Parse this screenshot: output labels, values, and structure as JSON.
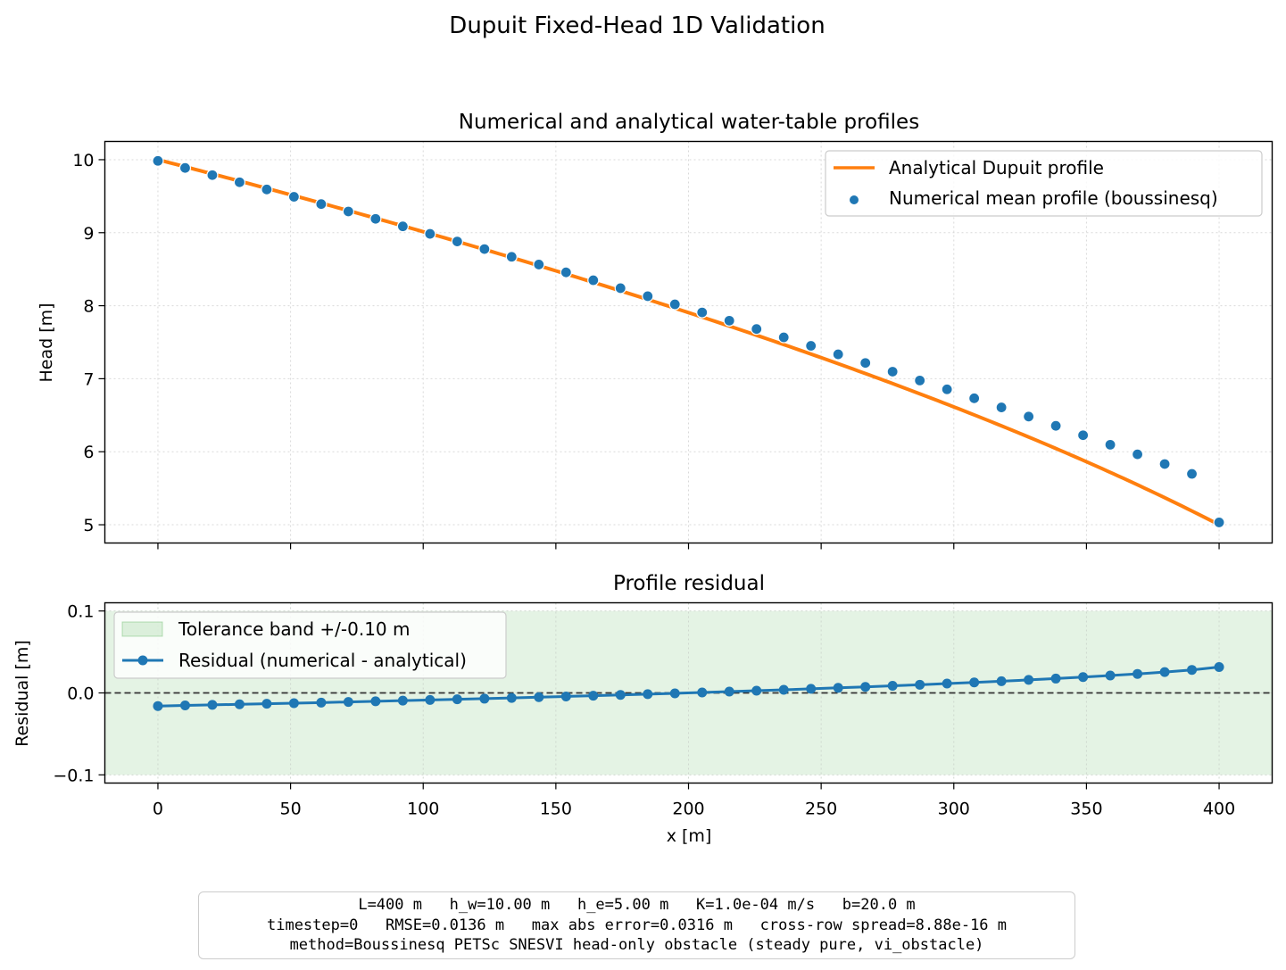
{
  "figure": {
    "suptitle": "Dupuit Fixed-Head 1D Validation",
    "info_lines": [
      "L=400 m   h_w=10.00 m   h_e=5.00 m   K=1.0e-04 m/s   b=20.0 m",
      "timestep=0   RMSE=0.0136 m   max abs error=0.0316 m   cross-row spread=8.88e-16 m",
      "method=Boussinesq PETSc SNESVI head-only obstacle (steady pure, vi_obstacle)"
    ]
  },
  "chart_data": [
    {
      "type": "line",
      "title": "Numerical and analytical water-table profiles",
      "xlabel": "",
      "ylabel": "Head [m]",
      "xlim": [
        -20,
        420
      ],
      "ylim": [
        4.75,
        10.25
      ],
      "yticks": [
        5,
        6,
        7,
        8,
        9,
        10
      ],
      "xticks": [
        0,
        50,
        100,
        150,
        200,
        250,
        300,
        350,
        400
      ],
      "grid": true,
      "legend_position": "top-right",
      "series": [
        {
          "name": "Analytical Dupuit profile",
          "kind": "line",
          "color": "#ff7f0e",
          "formula_h_w": 10.0,
          "formula_h_e": 5.0,
          "L": 400
        },
        {
          "name": "Numerical mean profile (boussinesq)",
          "kind": "scatter",
          "color": "#1f77b4",
          "x": [
            0,
            10.26,
            20.51,
            30.77,
            41.03,
            51.28,
            61.54,
            71.79,
            82.05,
            92.31,
            102.56,
            112.82,
            123.08,
            133.33,
            143.59,
            153.85,
            164.1,
            174.36,
            184.62,
            194.87,
            205.13,
            215.38,
            225.64,
            235.9,
            246.15,
            256.41,
            266.67,
            276.92,
            287.18,
            297.44,
            307.69,
            317.95,
            328.21,
            338.46,
            348.72,
            358.97,
            369.23,
            379.49,
            389.74,
            400
          ],
          "y": [
            9.984,
            9.887,
            9.789,
            9.691,
            9.592,
            9.492,
            9.392,
            9.291,
            9.19,
            9.087,
            8.984,
            8.88,
            8.776,
            8.67,
            8.564,
            8.457,
            8.349,
            8.24,
            8.13,
            8.019,
            7.908,
            7.795,
            7.681,
            7.567,
            7.451,
            7.334,
            7.216,
            7.097,
            6.976,
            6.855,
            6.732,
            6.607,
            6.482,
            6.355,
            6.226,
            6.096,
            5.965,
            5.832,
            5.697,
            5.032
          ]
        }
      ]
    },
    {
      "type": "line",
      "title": "Profile residual",
      "xlabel": "x [m]",
      "ylabel": "Residual [m]",
      "xlim": [
        -20,
        420
      ],
      "ylim": [
        -0.11,
        0.11
      ],
      "yticks": [
        -0.1,
        0.0,
        0.1
      ],
      "ytick_labels": [
        "−0.1",
        "0.0",
        "0.1"
      ],
      "xticks": [
        0,
        50,
        100,
        150,
        200,
        250,
        300,
        350,
        400
      ],
      "xtick_labels": [
        "0",
        "50",
        "100",
        "150",
        "200",
        "250",
        "300",
        "350",
        "400"
      ],
      "grid": true,
      "legend_position": "top-left",
      "tolerance_band": {
        "name": "Tolerance band +/-0.10 m",
        "lower": -0.1,
        "upper": 0.1,
        "color": "#2ca02c"
      },
      "zero_line": 0.0,
      "series": [
        {
          "name": "Residual (numerical - analytical)",
          "color": "#1f77b4",
          "x": [
            0,
            10.26,
            20.51,
            30.77,
            41.03,
            51.28,
            61.54,
            71.79,
            82.05,
            92.31,
            102.56,
            112.82,
            123.08,
            133.33,
            143.59,
            153.85,
            164.1,
            174.36,
            184.62,
            194.87,
            205.13,
            215.38,
            225.64,
            235.9,
            246.15,
            256.41,
            266.67,
            276.92,
            287.18,
            297.44,
            307.69,
            317.95,
            328.21,
            338.46,
            348.72,
            358.97,
            369.23,
            379.49,
            389.74,
            400
          ],
          "y": [
            -0.016,
            -0.0153,
            -0.0146,
            -0.0139,
            -0.0132,
            -0.0125,
            -0.0118,
            -0.011,
            -0.0102,
            -0.0094,
            -0.0086,
            -0.0078,
            -0.007,
            -0.0061,
            -0.0052,
            -0.0043,
            -0.0034,
            -0.0025,
            -0.0015,
            -0.0005,
            0.0005,
            0.0016,
            0.0027,
            0.0038,
            0.005,
            0.0062,
            0.0074,
            0.0087,
            0.01,
            0.0114,
            0.0128,
            0.0143,
            0.0159,
            0.0175,
            0.0193,
            0.0212,
            0.0232,
            0.0255,
            0.0281,
            0.0316
          ]
        }
      ]
    }
  ]
}
